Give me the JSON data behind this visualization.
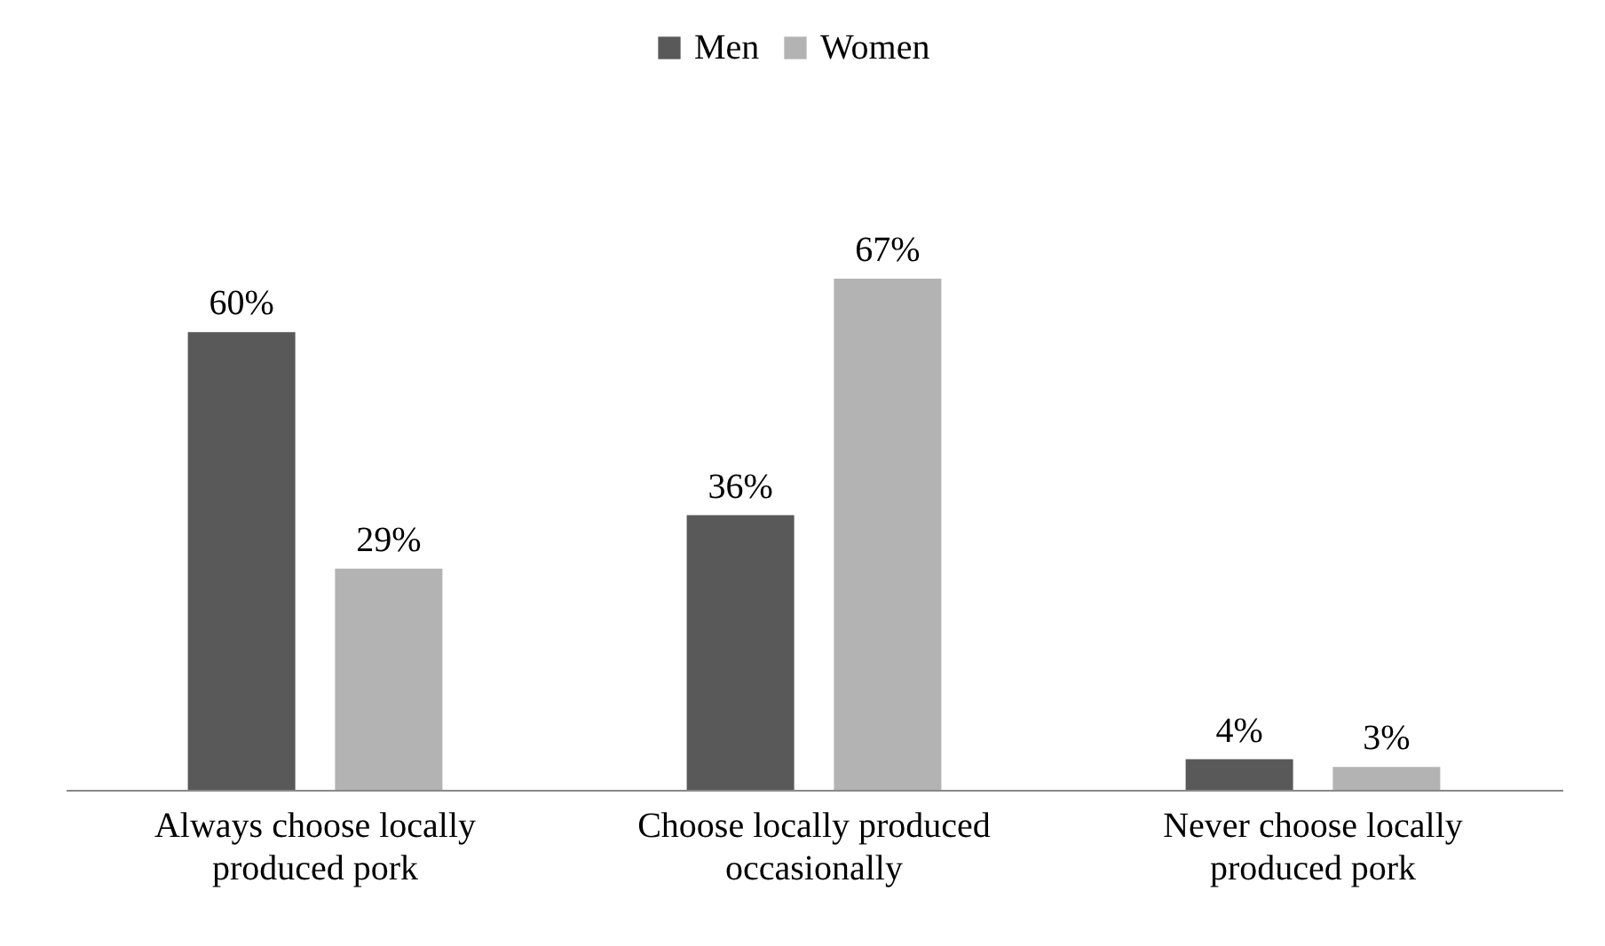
{
  "chart_data": {
    "type": "bar",
    "categories": [
      "Always choose locally\nproduced pork",
      "Choose locally produced\noccasionally",
      "Never choose locally\nproduced pork"
    ],
    "series": [
      {
        "name": "Men",
        "color": "#595959",
        "values": [
          60,
          36,
          4
        ],
        "value_labels": [
          "60%",
          "36%",
          "4%"
        ]
      },
      {
        "name": "Women",
        "color": "#b3b3b3",
        "values": [
          29,
          67,
          3
        ],
        "value_labels": [
          "29%",
          "67%",
          "3%"
        ]
      }
    ],
    "legend": "top",
    "grid": false
  }
}
